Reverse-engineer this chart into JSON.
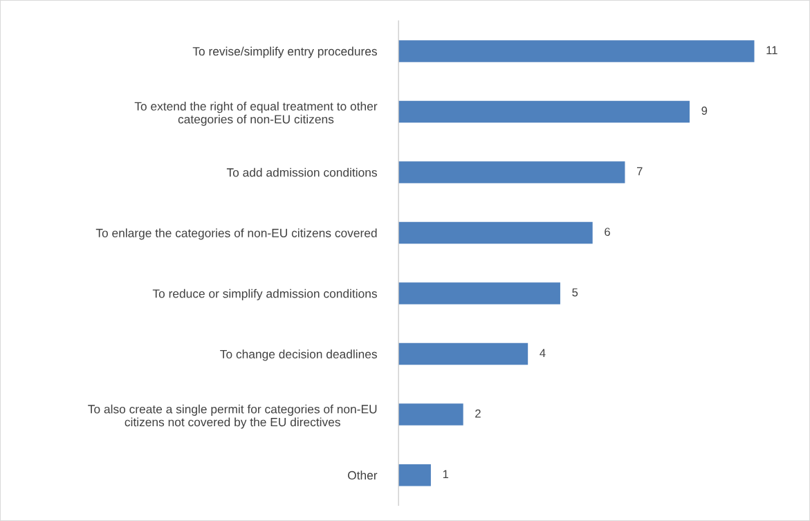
{
  "chart_data": {
    "type": "bar",
    "orientation": "horizontal",
    "categories": [
      "To revise/simplify entry procedures",
      "To extend the right of equal treatment to other\ncategories of non-EU citizens",
      "To add admission conditions",
      "To enlarge the categories of non-EU citizens covered",
      "To reduce or simplify admission conditions",
      "To change decision deadlines",
      "To also create a single permit for categories of non-EU\ncitizens not covered by the EU directives",
      "Other"
    ],
    "values": [
      11,
      9,
      7,
      6,
      5,
      4,
      2,
      1
    ],
    "color": "#4f81bd",
    "data_labels": true,
    "grid": false,
    "legend": false
  }
}
